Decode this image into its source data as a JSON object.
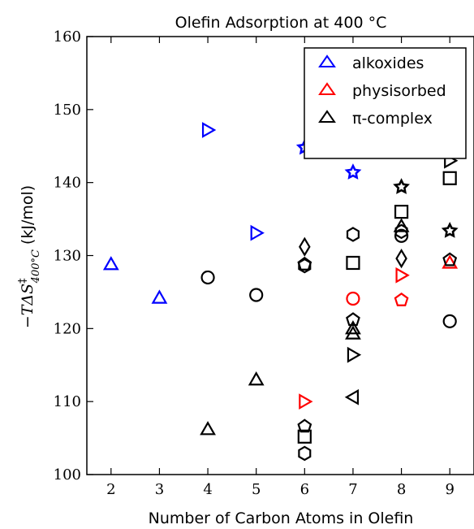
{
  "chart_data": {
    "type": "scatter",
    "title": "Olefin Adsorption at 400 °C",
    "xlabel": "Number of Carbon Atoms in Olefin",
    "ylabel": "−TΔS‡400°C (kJ/mol)",
    "ylabel_parts": {
      "main": "−TΔS",
      "sup": "‡",
      "sub": "400°C",
      "unit": "(kJ/mol)"
    },
    "xlim": [
      1.5,
      9.5
    ],
    "ylim": [
      100,
      160
    ],
    "xticks": [
      "2",
      "3",
      "4",
      "5",
      "6",
      "7",
      "8",
      "9"
    ],
    "yticks": [
      "100",
      "110",
      "120",
      "130",
      "140",
      "150",
      "160"
    ],
    "grid": false,
    "legend_position": "top-right",
    "legend": [
      {
        "label": "alkoxides",
        "color": "#0000ff"
      },
      {
        "label": "physisorbed",
        "color": "#ff0000"
      },
      {
        "label": "π-complex",
        "color": "#000000"
      }
    ],
    "points": [
      {
        "x": 2,
        "y": 128.8,
        "marker": "triangle-up",
        "series": "alkoxides"
      },
      {
        "x": 3,
        "y": 124.2,
        "marker": "triangle-up",
        "series": "alkoxides"
      },
      {
        "x": 4,
        "y": 147.2,
        "marker": "triangle-right",
        "series": "alkoxides"
      },
      {
        "x": 5,
        "y": 133.1,
        "marker": "triangle-right",
        "series": "alkoxides"
      },
      {
        "x": 6,
        "y": 144.8,
        "marker": "star",
        "series": "alkoxides"
      },
      {
        "x": 7,
        "y": 141.4,
        "marker": "star",
        "series": "alkoxides"
      },
      {
        "x": 6,
        "y": 110.0,
        "marker": "triangle-right",
        "series": "physisorbed"
      },
      {
        "x": 7,
        "y": 124.1,
        "marker": "circle",
        "series": "physisorbed"
      },
      {
        "x": 8,
        "y": 127.3,
        "marker": "triangle-right",
        "series": "physisorbed"
      },
      {
        "x": 8,
        "y": 123.9,
        "marker": "pentagon",
        "series": "physisorbed"
      },
      {
        "x": 9,
        "y": 129.0,
        "marker": "triangle-up",
        "series": "physisorbed"
      },
      {
        "x": 4,
        "y": 127.0,
        "marker": "circle",
        "series": "π-complex"
      },
      {
        "x": 4,
        "y": 106.2,
        "marker": "triangle-up",
        "series": "π-complex"
      },
      {
        "x": 5,
        "y": 124.6,
        "marker": "circle",
        "series": "π-complex"
      },
      {
        "x": 5,
        "y": 113.0,
        "marker": "triangle-up",
        "series": "π-complex"
      },
      {
        "x": 6,
        "y": 131.2,
        "marker": "diamond",
        "series": "π-complex"
      },
      {
        "x": 6,
        "y": 128.8,
        "marker": "pentagon",
        "series": "π-complex"
      },
      {
        "x": 6,
        "y": 128.6,
        "marker": "hexagon",
        "series": "π-complex"
      },
      {
        "x": 6,
        "y": 106.6,
        "marker": "pentagon",
        "series": "π-complex"
      },
      {
        "x": 6,
        "y": 105.2,
        "marker": "square",
        "series": "π-complex"
      },
      {
        "x": 6,
        "y": 102.9,
        "marker": "hexagon",
        "series": "π-complex"
      },
      {
        "x": 7,
        "y": 132.9,
        "marker": "hexagon",
        "series": "π-complex"
      },
      {
        "x": 7,
        "y": 129.0,
        "marker": "square",
        "series": "π-complex"
      },
      {
        "x": 7,
        "y": 121.2,
        "marker": "pentagon",
        "series": "π-complex"
      },
      {
        "x": 7,
        "y": 120.0,
        "marker": "triangle-up",
        "series": "π-complex"
      },
      {
        "x": 7,
        "y": 119.3,
        "marker": "triangle-up",
        "series": "π-complex"
      },
      {
        "x": 7,
        "y": 116.4,
        "marker": "triangle-right",
        "series": "π-complex"
      },
      {
        "x": 7,
        "y": 110.6,
        "marker": "triangle-left",
        "series": "π-complex"
      },
      {
        "x": 8,
        "y": 139.4,
        "marker": "star",
        "series": "π-complex"
      },
      {
        "x": 8,
        "y": 136.0,
        "marker": "square",
        "series": "π-complex"
      },
      {
        "x": 8,
        "y": 134.0,
        "marker": "triangle-up",
        "series": "π-complex"
      },
      {
        "x": 8,
        "y": 133.3,
        "marker": "hexagon",
        "series": "π-complex"
      },
      {
        "x": 8,
        "y": 132.7,
        "marker": "circle",
        "series": "π-complex"
      },
      {
        "x": 8,
        "y": 129.6,
        "marker": "diamond",
        "series": "π-complex"
      },
      {
        "x": 9,
        "y": 143.0,
        "marker": "triangle-right",
        "series": "π-complex"
      },
      {
        "x": 9,
        "y": 140.6,
        "marker": "square",
        "series": "π-complex"
      },
      {
        "x": 9,
        "y": 133.4,
        "marker": "star",
        "series": "π-complex"
      },
      {
        "x": 9,
        "y": 129.4,
        "marker": "pentagon",
        "series": "π-complex"
      },
      {
        "x": 9,
        "y": 121.0,
        "marker": "circle",
        "series": "π-complex"
      }
    ]
  }
}
